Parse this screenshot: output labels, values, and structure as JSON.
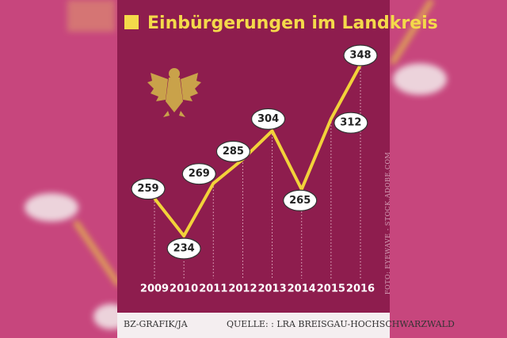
{
  "chart_data": {
    "type": "line",
    "title": "Einbürgerungen im Landkreis",
    "categories": [
      "2009",
      "2010",
      "2011",
      "2012",
      "2013",
      "2014",
      "2015",
      "2016"
    ],
    "values": [
      259,
      234,
      269,
      285,
      304,
      265,
      312,
      348
    ],
    "color": "#f2d23a"
  },
  "footer": {
    "graphic": "BZ-GRAFIK/JA",
    "source": "QUELLE: : LRA BREISGAU-HOCHSCHWARZWALD"
  },
  "credit": "FOTO: EYEWAVE - STOCK.ADOBE.COM"
}
